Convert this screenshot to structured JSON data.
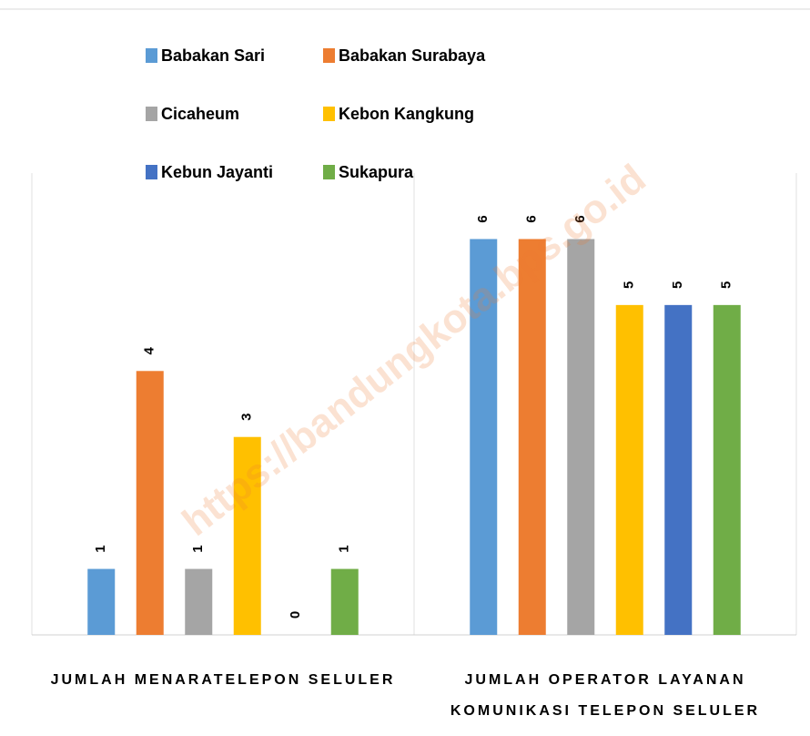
{
  "chart_data": {
    "type": "bar",
    "categories": [
      "JUMLAH MENARATELEPON SELULER",
      "JUMLAH OPERATOR LAYANAN KOMUNIKASI TELEPON SELULER"
    ],
    "series": [
      {
        "name": "Babakan Sari",
        "color": "#5b9bd5",
        "values": [
          1,
          6
        ]
      },
      {
        "name": "Babakan Surabaya",
        "color": "#ed7d31",
        "values": [
          4,
          6
        ]
      },
      {
        "name": "Cicaheum",
        "color": "#a5a5a5",
        "values": [
          1,
          6
        ]
      },
      {
        "name": "Kebon Kangkung",
        "color": "#ffc000",
        "values": [
          3,
          5
        ]
      },
      {
        "name": "Kebun Jayanti",
        "color": "#4472c4",
        "values": [
          0,
          5
        ]
      },
      {
        "name": "Sukapura",
        "color": "#70ad47",
        "values": [
          1,
          5
        ]
      }
    ],
    "ylim": [
      0,
      7
    ],
    "watermark": "https://bandungkota.bps.go.id"
  }
}
